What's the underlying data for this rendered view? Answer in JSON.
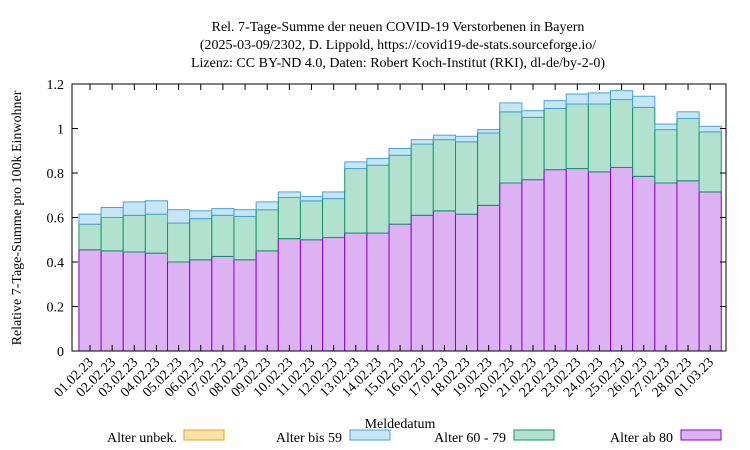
{
  "chart_data": {
    "type": "bar",
    "stacked": true,
    "title_lines": [
      "Rel. 7-Tage-Summe der neuen COVID-19 Verstorbenen in Bayern",
      "(2025-03-09/2302, D. Lippold, https://covid19-de-stats.sourceforge.io/",
      "Lizenz: CC BY-ND 4.0, Daten: Robert Koch-Institut (RKI), dl-de/by-2-0)"
    ],
    "xlabel": "Meldedatum",
    "ylabel": "Relative 7-Tage-Summe pro 100k Einwohner",
    "ylim": [
      0,
      1.2
    ],
    "yticks": [
      0,
      0.2,
      0.4,
      0.6,
      0.8,
      1,
      1.2
    ],
    "ytick_labels": [
      "0",
      "0.2",
      "0.4",
      "0.6",
      "0.8",
      "1",
      "1.2"
    ],
    "categories": [
      "01.02.23",
      "02.02.23",
      "03.02.23",
      "04.02.23",
      "05.02.23",
      "06.02.23",
      "07.02.23",
      "08.02.23",
      "09.02.23",
      "10.02.23",
      "11.02.23",
      "12.02.23",
      "13.02.23",
      "14.02.23",
      "15.02.23",
      "16.02.23",
      "17.02.23",
      "18.02.23",
      "19.02.23",
      "20.02.23",
      "21.02.23",
      "22.02.23",
      "23.02.23",
      "24.02.23",
      "25.02.23",
      "26.02.23",
      "27.02.23",
      "28.02.23",
      "01.03.23"
    ],
    "series": [
      {
        "name": "Alter unbek.",
        "fill": "#fde2a7",
        "stroke": "#e8a020",
        "values": [
          0,
          0,
          0,
          0,
          0,
          0,
          0,
          0,
          0,
          0,
          0,
          0,
          0,
          0,
          0,
          0,
          0,
          0,
          0,
          0,
          0,
          0,
          0,
          0,
          0,
          0,
          0,
          0,
          0
        ]
      },
      {
        "name": "Alter bis 59",
        "fill": "#c6e6f5",
        "stroke": "#4aa3d6",
        "values": [
          0.045,
          0.045,
          0.06,
          0.06,
          0.06,
          0.035,
          0.03,
          0.03,
          0.035,
          0.025,
          0.02,
          0.03,
          0.03,
          0.03,
          0.03,
          0.02,
          0.02,
          0.025,
          0.015,
          0.04,
          0.03,
          0.035,
          0.045,
          0.05,
          0.04,
          0.05,
          0.025,
          0.03,
          0.025
        ]
      },
      {
        "name": "Alter 60 - 79",
        "fill": "#b2e2cf",
        "stroke": "#12946a",
        "values": [
          0.115,
          0.15,
          0.165,
          0.175,
          0.175,
          0.185,
          0.185,
          0.195,
          0.185,
          0.185,
          0.175,
          0.175,
          0.29,
          0.305,
          0.31,
          0.32,
          0.32,
          0.325,
          0.325,
          0.32,
          0.28,
          0.275,
          0.29,
          0.305,
          0.305,
          0.31,
          0.24,
          0.28,
          0.27
        ]
      },
      {
        "name": "Alter ab 80",
        "fill": "#ddb2f2",
        "stroke": "#8a00c8",
        "values": [
          0.455,
          0.45,
          0.445,
          0.44,
          0.4,
          0.41,
          0.425,
          0.41,
          0.45,
          0.505,
          0.5,
          0.51,
          0.53,
          0.53,
          0.57,
          0.61,
          0.63,
          0.615,
          0.655,
          0.755,
          0.77,
          0.815,
          0.82,
          0.805,
          0.825,
          0.785,
          0.755,
          0.765,
          0.715
        ]
      }
    ],
    "legend_position": "bottom"
  }
}
